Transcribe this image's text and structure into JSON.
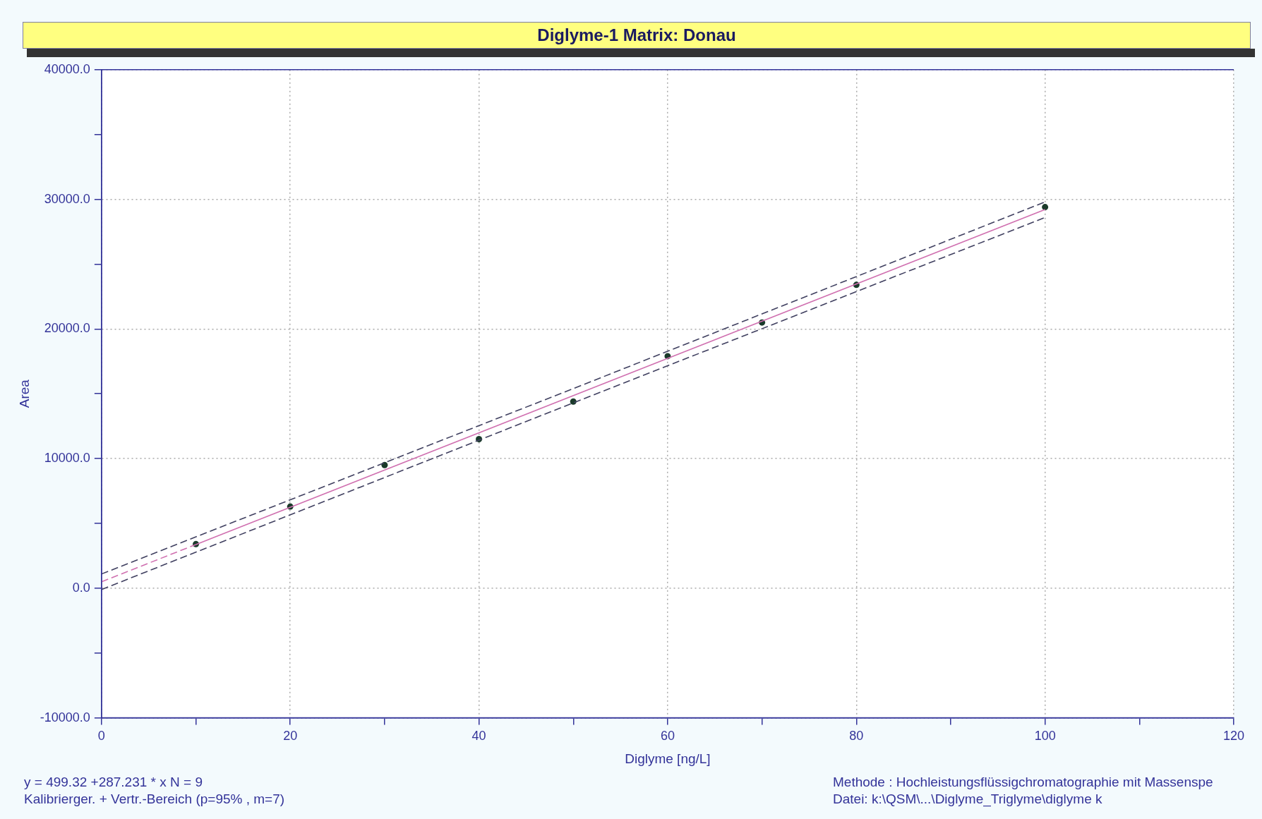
{
  "chart_data": {
    "type": "scatter",
    "title": "Diglyme-1 Matrix: Donau",
    "xlabel": "Diglyme [ng/L]",
    "ylabel": "Area",
    "xlim": [
      0,
      120
    ],
    "xticks": [
      0,
      {
        "value": 10,
        "label": null
      },
      20,
      {
        "value": 30,
        "label": null
      },
      40,
      {
        "value": 50,
        "label": null
      },
      60,
      {
        "value": 70,
        "label": null
      },
      80,
      {
        "value": 90,
        "label": null
      },
      100,
      {
        "value": 110,
        "label": null
      },
      120
    ],
    "ylim": [
      -10000,
      40000
    ],
    "yticks": [
      {
        "value": -10000,
        "label": "-10000.0"
      },
      {
        "value": -5000,
        "label": null
      },
      {
        "value": 0,
        "label": "0.0"
      },
      {
        "value": 5000,
        "label": null
      },
      {
        "value": 10000,
        "label": "10000.0"
      },
      {
        "value": 15000,
        "label": null
      },
      {
        "value": 20000,
        "label": "20000.0"
      },
      {
        "value": 25000,
        "label": null
      },
      {
        "value": 30000,
        "label": "30000.0"
      },
      {
        "value": 35000,
        "label": null
      },
      {
        "value": 40000,
        "label": "40000.0"
      }
    ],
    "grid": true,
    "legend": false,
    "series": [
      {
        "type": "line",
        "color": "#d070b0",
        "line_style": "dashed",
        "marker": "none",
        "x": [
          0,
          10
        ],
        "values": [
          500,
          3370
        ]
      },
      {
        "type": "line",
        "color": "#d070b0",
        "line_style": "solid",
        "marker": "none",
        "x": [
          10,
          100
        ],
        "values": [
          3370,
          29220
        ]
      },
      {
        "type": "line",
        "color": "#404060",
        "line_style": "dashed",
        "marker": "none",
        "x": [
          0,
          50,
          100
        ],
        "values": [
          1100,
          15400,
          29800
        ]
      },
      {
        "type": "line",
        "color": "#404060",
        "line_style": "dashed",
        "marker": "none",
        "x": [
          0,
          50,
          100
        ],
        "values": [
          -100,
          14300,
          28600
        ]
      },
      {
        "type": "scatter",
        "color": "#1a3a2a",
        "marker": "circle",
        "x": [
          10,
          20,
          30,
          40,
          50,
          60,
          70,
          80,
          100
        ],
        "values": [
          3400,
          6300,
          9500,
          11500,
          14400,
          17900,
          20500,
          23400,
          29400
        ]
      }
    ],
    "annotations": [
      "y = 499.32 +287.231 * x      N = 9",
      "Kalibrierger. + Vertr.-Bereich  (p=95% , m=7)",
      "Methode : Hochleistungsflüssigchromatographie mit Massenspe",
      "Datei: k:\\QSM\\...\\Diglyme_Triglyme\\diglyme k"
    ]
  }
}
